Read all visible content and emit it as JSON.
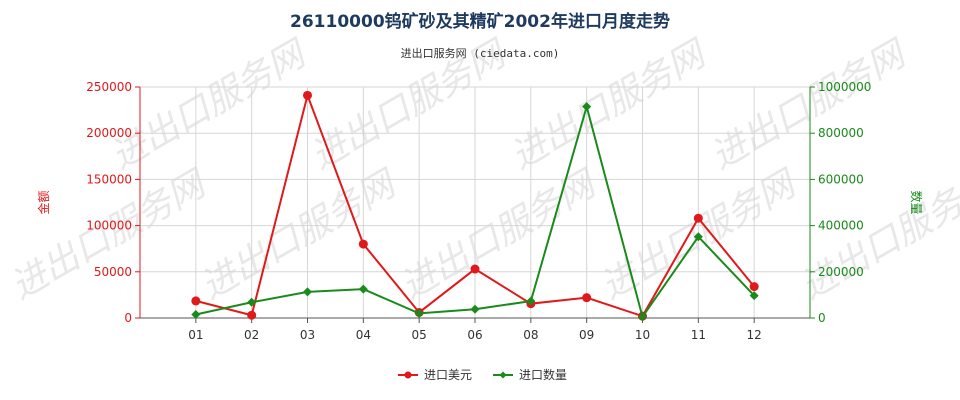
{
  "chart_data": {
    "type": "line",
    "title": "26110000钨矿砂及其精矿2002年进口月度走势",
    "subtitle": "进出口服务网 (ciedata.com)",
    "watermark": "进出口服务网",
    "categories": [
      "01",
      "02",
      "03",
      "04",
      "05",
      "06",
      "08",
      "09",
      "10",
      "11",
      "12"
    ],
    "y_left": {
      "label": "金额",
      "ylim": [
        0,
        250000
      ],
      "ticks": [
        "0",
        "50000",
        "100000",
        "150000",
        "200000",
        "250000"
      ],
      "color": "#e0191b"
    },
    "y_right": {
      "label": "数量",
      "ylim": [
        0,
        1000000
      ],
      "ticks": [
        "0",
        "200000",
        "400000",
        "600000",
        "800000",
        "1000000"
      ],
      "color": "#1a8a1a"
    },
    "series": [
      {
        "name": "进口美元",
        "axis": "left",
        "color": "#e0191b",
        "values": [
          18500,
          3000,
          241000,
          80000,
          6000,
          53000,
          15500,
          22000,
          2000,
          108000,
          34000
        ]
      },
      {
        "name": "进口数量",
        "axis": "right",
        "color": "#1a8a1a",
        "values": [
          15000,
          68000,
          113000,
          125000,
          20000,
          38000,
          73000,
          915000,
          5000,
          352000,
          97000
        ]
      }
    ],
    "grid": true,
    "legend_position": "bottom-center"
  }
}
